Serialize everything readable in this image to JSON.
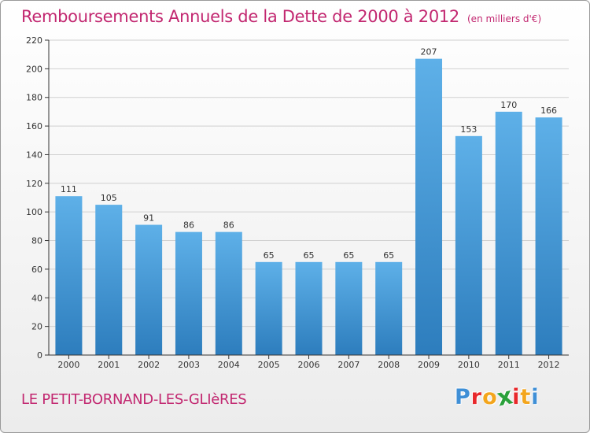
{
  "header": {
    "title": "Remboursements Annuels de la Dette de 2000 à 2012",
    "unit": "(en milliers d'€)"
  },
  "footer": {
    "commune": "LE PETIT-BORNAND-LES-GLIèRES",
    "logo_letters": [
      "P",
      "r",
      "o",
      "x",
      "i",
      "t",
      "i"
    ],
    "logo_colors": [
      "#3f8fd6",
      "#e8282b",
      "#f3a51c",
      "#2aa13b",
      "#e8282b",
      "#f3a51c",
      "#3f8fd6"
    ]
  },
  "colors": {
    "bar_top": "#5eb0e8",
    "bar_bottom": "#2d7dbd",
    "axis": "#333333",
    "grid": "#d0d0d0"
  },
  "chart_data": {
    "type": "bar",
    "categories": [
      "2000",
      "2001",
      "2002",
      "2003",
      "2004",
      "2005",
      "2006",
      "2007",
      "2008",
      "2009",
      "2010",
      "2011",
      "2012"
    ],
    "values": [
      111,
      105,
      91,
      86,
      86,
      65,
      65,
      65,
      65,
      207,
      153,
      170,
      166
    ],
    "title": "Remboursements Annuels de la Dette de 2000 à 2012",
    "ylim": [
      0,
      220
    ],
    "yticks": [
      0,
      20,
      40,
      60,
      80,
      100,
      120,
      140,
      160,
      180,
      200,
      220
    ],
    "grid": true,
    "data_labels": true
  }
}
